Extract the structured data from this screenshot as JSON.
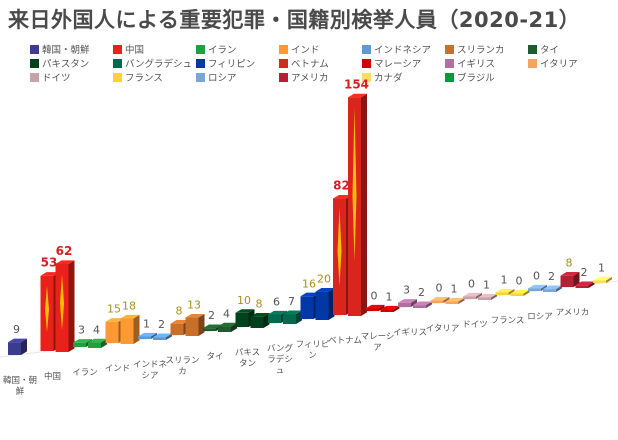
{
  "title": "来日外国人による重要犯罪・国籍別検挙人員（2020-21）",
  "chart_data": {
    "type": "bar",
    "title": "来日外国人による重要犯罪・国籍別検挙人員（2020-21）",
    "categories": [
      "韓国・朝鮮",
      "中国",
      "イラン",
      "インド",
      "インドネシア",
      "スリランカ",
      "タイ",
      "パキスタン",
      "バングラデシュ",
      "フィリピン",
      "ベトナム",
      "マレーシア",
      "イギリス",
      "イタリア",
      "ドイツ",
      "フランス",
      "ロシア",
      "アメリカ",
      "カナダ",
      "ブラジル"
    ],
    "category_labels": [
      "韓国・朝\n鮮",
      "中国",
      "イラン",
      "インド",
      "インドネ\nシア",
      "スリラン\nカ",
      "タイ",
      "パキス\nタン",
      "バング\nラデシ\nュ",
      "フィリピ\nン",
      "ベトナム",
      "マレーシ\nア",
      "イギリス",
      "イタリア",
      "ドイツ",
      "フランス",
      "ロシア",
      "アメリカ",
      "",
      ""
    ],
    "series": [
      {
        "name": "2020",
        "values": [
          9,
          53,
          3,
          15,
          1,
          8,
          2,
          10,
          6,
          16,
          82,
          0,
          3,
          0,
          0,
          1,
          0,
          8,
          1,
          null
        ]
      },
      {
        "name": "2021",
        "values": [
          null,
          62,
          4,
          18,
          2,
          13,
          4,
          8,
          7,
          20,
          154,
          1,
          2,
          1,
          1,
          0,
          2,
          2,
          null,
          null
        ]
      }
    ],
    "highlight_labels": [
      53,
      62,
      15,
      18,
      8,
      13,
      10,
      8,
      16,
      20,
      82,
      154
    ],
    "legend_position": "top",
    "colors": {
      "韓国・朝鮮": "#3b3b8f",
      "中国": "#e8211a",
      "イラン": "#239f40",
      "インド": "#ff9933",
      "インドネシア": "#5b9bd5",
      "スリランカ": "#c8702a",
      "タイ": "#1e5c2e",
      "パキスタン": "#01411c",
      "バングラデシュ": "#006a4e",
      "フィリピン": "#0038a8",
      "ベトナム": "#da251d",
      "マレーシア": "#cc0001",
      "イギリス": "#b06f9e",
      "イタリア": "#f4a460",
      "ドイツ": "#c8a2a8",
      "フランス": "#ffd040",
      "ロシア": "#7aa7d8",
      "アメリカ": "#b22234",
      "カナダ": "#ffd966",
      "ブラジル": "#009c3b"
    }
  }
}
